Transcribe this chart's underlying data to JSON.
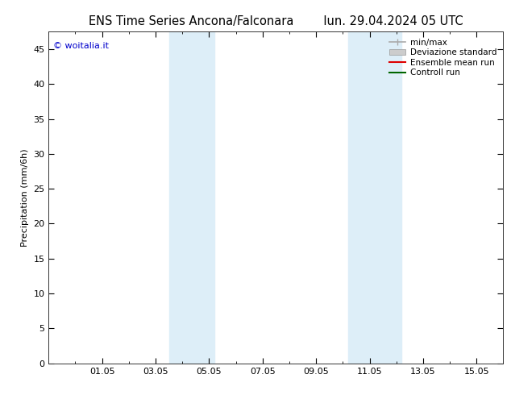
{
  "title_left": "ENS Time Series Ancona/Falconara",
  "title_right": "lun. 29.04.2024 05 UTC",
  "ylabel": "Precipitation (mm/6h)",
  "watermark": "© woitalia.it",
  "ylim": [
    0,
    47.5
  ],
  "yticks": [
    0,
    5,
    10,
    15,
    20,
    25,
    30,
    35,
    40,
    45
  ],
  "xtick_labels": [
    "01.05",
    "03.05",
    "05.05",
    "07.05",
    "09.05",
    "11.05",
    "13.05",
    "15.05"
  ],
  "xtick_positions": [
    2,
    4,
    6,
    8,
    10,
    12,
    14,
    16
  ],
  "xlim": [
    0,
    17
  ],
  "shade_bands": [
    {
      "xmin": 4.5,
      "xmax": 6.2
    },
    {
      "xmin": 11.2,
      "xmax": 13.2
    }
  ],
  "shade_color": "#ddeef8",
  "background_color": "#ffffff",
  "legend_items": [
    {
      "label": "min/max",
      "color": "#aaaaaa",
      "type": "hline"
    },
    {
      "label": "Deviazione standard",
      "color": "#cccccc",
      "type": "fill"
    },
    {
      "label": "Ensemble mean run",
      "color": "#dd0000",
      "type": "line"
    },
    {
      "label": "Controll run",
      "color": "#006600",
      "type": "line"
    }
  ],
  "title_fontsize": 10.5,
  "legend_fontsize": 7.5,
  "axis_label_fontsize": 8,
  "tick_fontsize": 8,
  "watermark_fontsize": 8,
  "watermark_color": "#0000cc"
}
